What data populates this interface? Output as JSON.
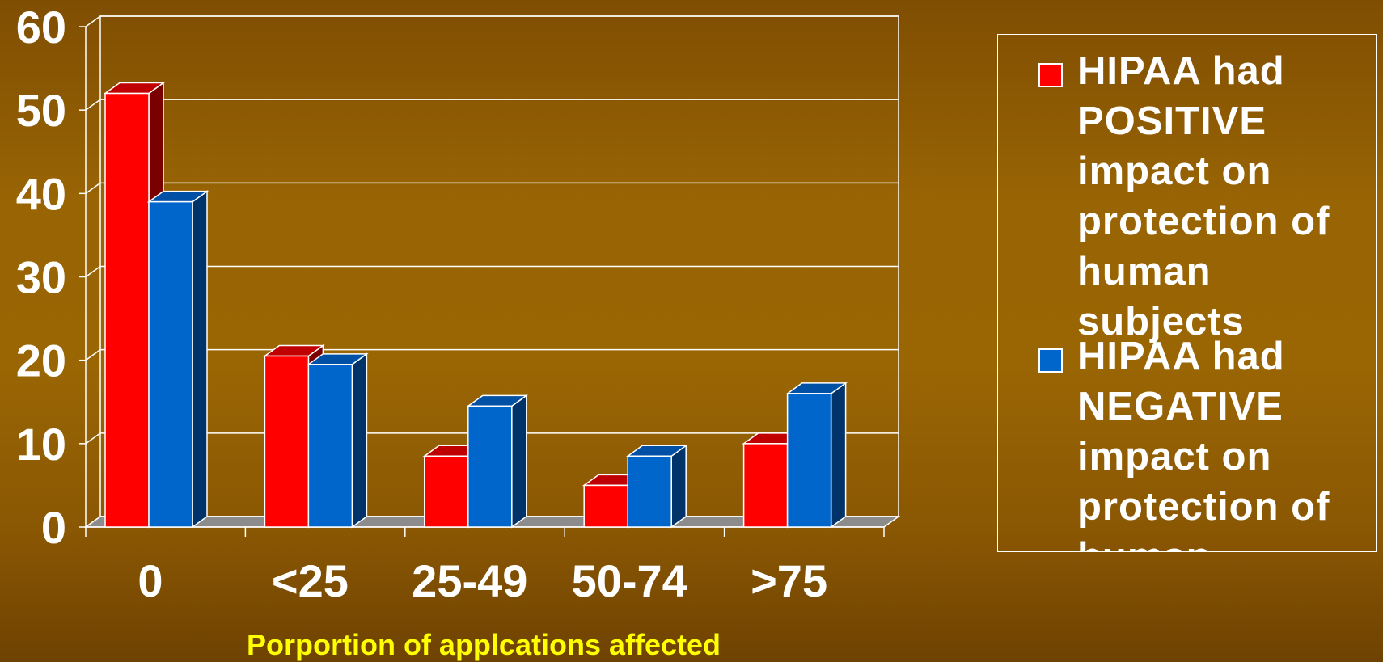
{
  "chart_data": {
    "type": "bar",
    "categories": [
      "0",
      "<25",
      "25-49",
      "50-74",
      ">75"
    ],
    "series": [
      {
        "name": "HIPAA had POSITIVE impact on protection of human subjects",
        "values": [
          52,
          20.5,
          8.5,
          5,
          10
        ],
        "color": "#ff0000"
      },
      {
        "name": "HIPAA had NEGATIVE impact on protection of human subjects",
        "values": [
          39,
          19.5,
          14.5,
          8.5,
          16
        ],
        "color": "#0066cc"
      }
    ],
    "yticks": [
      "0",
      "10",
      "20",
      "30",
      "40",
      "50",
      "60"
    ],
    "ylim": [
      0,
      60
    ],
    "xlabel": "Porportion of applcations affected",
    "ylabel": "",
    "grid": true,
    "legend_position": "right"
  }
}
